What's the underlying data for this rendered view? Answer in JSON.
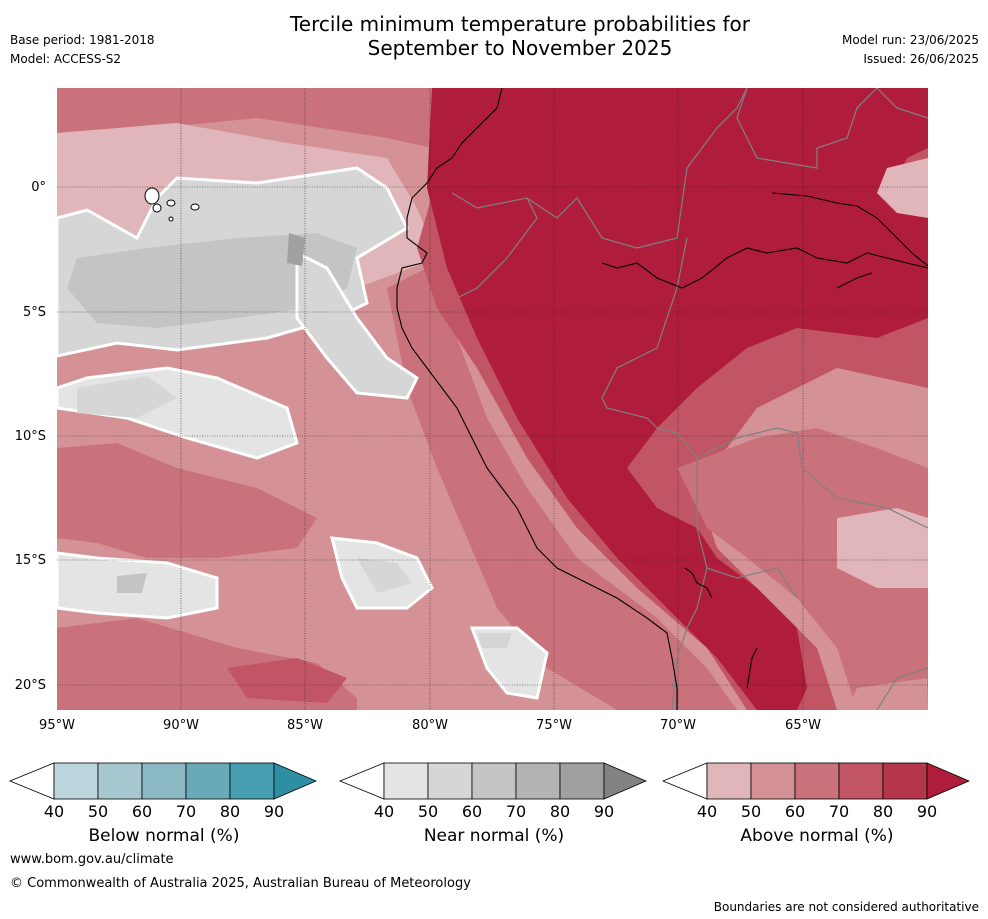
{
  "header": {
    "base_period": "Base period: 1981-2018",
    "model": "Model: ACCESS-S2",
    "title_line1": "Tercile minimum temperature probabilities for",
    "title_line2": "September to November 2025",
    "model_run": "Model run: 23/06/2025",
    "issued": "Issued: 26/06/2025"
  },
  "map": {
    "lat_labels": [
      "0°",
      "5°S",
      "10°S",
      "15°S",
      "20°S"
    ],
    "lon_labels": [
      "95°W",
      "90°W",
      "85°W",
      "80°W",
      "75°W",
      "70°W",
      "65°W"
    ]
  },
  "colorbars": [
    {
      "title": "Below normal (%)",
      "ticks": [
        "40",
        "50",
        "60",
        "70",
        "80",
        "90"
      ],
      "colors": [
        "#bcd5dd",
        "#a6c7cf",
        "#8ab8c3",
        "#6aaab8",
        "#47a0b1",
        "#2e8ea3"
      ]
    },
    {
      "title": "Near normal (%)",
      "ticks": [
        "40",
        "50",
        "60",
        "70",
        "80",
        "90"
      ],
      "colors": [
        "#e4e4e4",
        "#d6d6d6",
        "#c4c4c4",
        "#b4b4b4",
        "#a0a0a0",
        "#828282"
      ]
    },
    {
      "title": "Above normal (%)",
      "ticks": [
        "40",
        "50",
        "60",
        "70",
        "80",
        "90"
      ],
      "colors": [
        "#e0b6bb",
        "#d49297",
        "#c9727c",
        "#c15564",
        "#b5364b",
        "#b01c3c"
      ]
    }
  ],
  "footer": {
    "website": "www.bom.gov.au/climate",
    "copyright": "© Commonwealth of Australia 2025, Australian Bureau of Meteorology",
    "disclaimer": "Boundaries are not considered authoritative"
  }
}
